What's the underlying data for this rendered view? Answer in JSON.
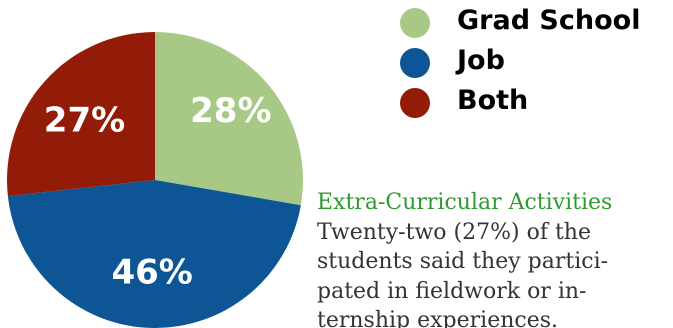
{
  "chart_data": {
    "type": "pie",
    "categories": [
      "Grad School",
      "Job",
      "Both"
    ],
    "values": [
      28,
      46,
      27
    ],
    "data_labels": [
      "28%",
      "46%",
      "27%"
    ],
    "colors": [
      "#a8c986",
      "#0e5595",
      "#931c08"
    ],
    "legend_position": "top-right",
    "title": "",
    "subtitle": ""
  },
  "legend": {
    "items": [
      {
        "label": "Grad School",
        "color": "#a8c986"
      },
      {
        "label": "Job",
        "color": "#0e5595"
      },
      {
        "label": "Both",
        "color": "#931c08"
      }
    ]
  },
  "text": {
    "heading": "Extra-Curricular Activities",
    "lines": [
      "Twenty-two (27%) of the",
      "students said they partici-",
      "pated in fieldwork or in-",
      "ternship experiences."
    ]
  }
}
